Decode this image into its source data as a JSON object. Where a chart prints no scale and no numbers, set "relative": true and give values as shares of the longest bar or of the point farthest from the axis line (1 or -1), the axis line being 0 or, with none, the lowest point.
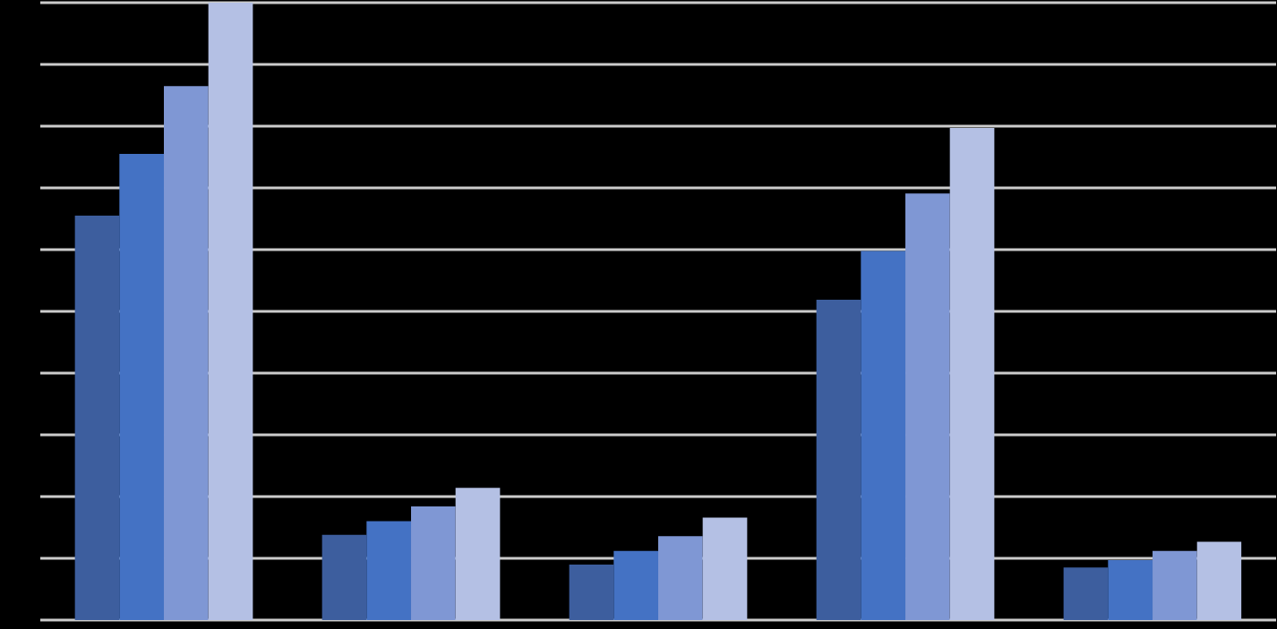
{
  "chart_data": {
    "type": "bar",
    "relative": true,
    "grid": "y",
    "categories": [
      null,
      null,
      null,
      null,
      null
    ],
    "series": [
      {
        "color": "#3d5e9e",
        "values": [
          0.655,
          0.138,
          0.09,
          0.519,
          0.085
        ]
      },
      {
        "color": "#4472c4",
        "values": [
          0.755,
          0.16,
          0.112,
          0.598,
          0.097
        ]
      },
      {
        "color": "#7f97d4",
        "values": [
          0.865,
          0.184,
          0.136,
          0.691,
          0.112
        ]
      },
      {
        "color": "#b4c0e4",
        "values": [
          1,
          0.214,
          0.166,
          0.797,
          0.127
        ]
      }
    ]
  }
}
